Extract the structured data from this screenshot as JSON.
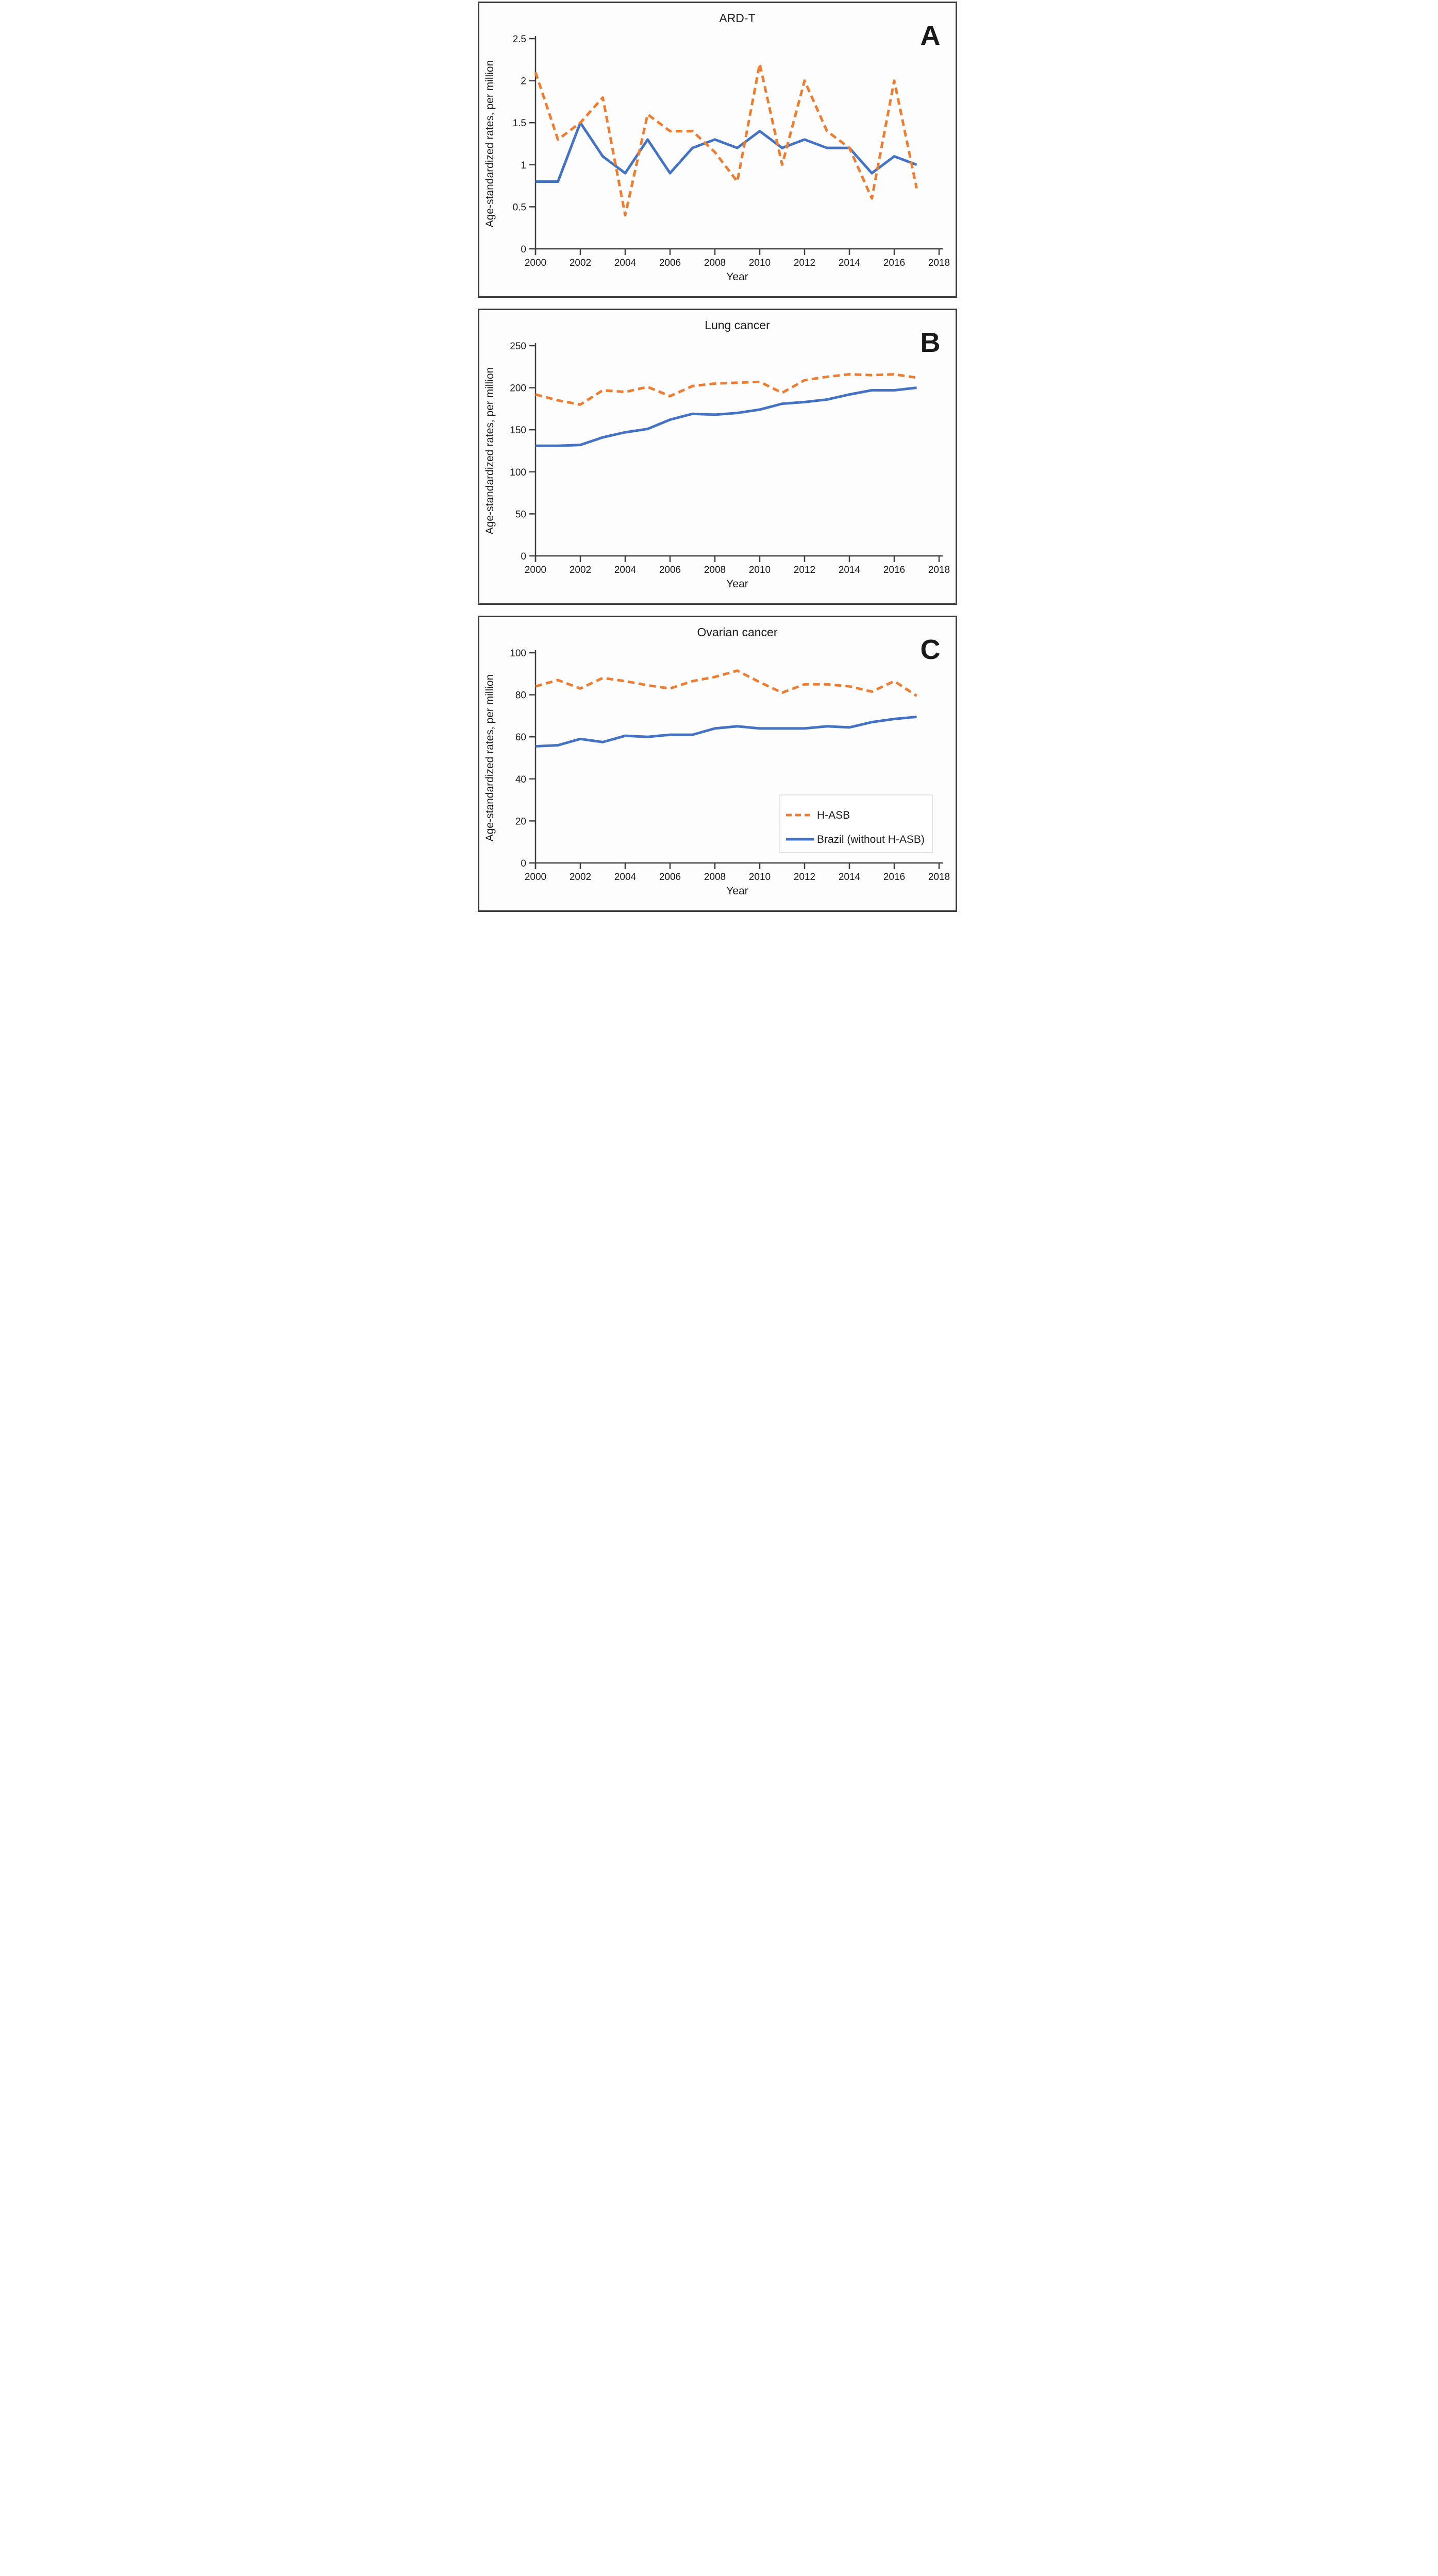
{
  "figure": {
    "y_axis_label": "Age-standardized rates, per million",
    "x_axis_label": "Year",
    "colors": {
      "h_asb_orange": "#ED7D31",
      "brazil_blue": "#4472C4",
      "axis": "#3F3F3F",
      "frame": "#3B3B3B",
      "panel_bg": "#FDFDFD",
      "text": "#1A1A1A",
      "legend_border": "#C9C9C9"
    },
    "legend": {
      "position": "bottom-right-of-panel-C",
      "items": [
        {
          "label": "H-ASB",
          "style": "dashed",
          "color": "#ED7D31"
        },
        {
          "label": "Brazil (without H-ASB)",
          "style": "solid",
          "color": "#4472C4"
        }
      ]
    }
  },
  "chart_data": [
    {
      "type": "line",
      "panel_letter": "A",
      "title": "ARD-T",
      "xlabel": "Year",
      "ylabel": "Age-standardized rates, per million",
      "xlim": [
        2000,
        2018
      ],
      "ylim": [
        0,
        2.5
      ],
      "xticks": [
        2000,
        2002,
        2004,
        2006,
        2008,
        2010,
        2012,
        2014,
        2016,
        2018
      ],
      "yticks": [
        0,
        0.5,
        1,
        1.5,
        2,
        2.5
      ],
      "grid": false,
      "legend": false,
      "x": [
        2000,
        2001,
        2002,
        2003,
        2004,
        2005,
        2006,
        2007,
        2008,
        2009,
        2010,
        2011,
        2012,
        2013,
        2014,
        2015,
        2016,
        2017
      ],
      "series": [
        {
          "name": "H-ASB",
          "color": "#ED7D31",
          "dash": true,
          "values": [
            2.1,
            1.3,
            1.5,
            1.8,
            0.4,
            1.6,
            1.4,
            1.4,
            1.15,
            0.8,
            2.2,
            1.0,
            2.0,
            1.4,
            1.2,
            0.6,
            2.0,
            0.72
          ]
        },
        {
          "name": "Brazil (without H-ASB)",
          "color": "#4472C4",
          "dash": false,
          "values": [
            0.8,
            0.8,
            1.5,
            1.1,
            0.9,
            1.3,
            0.9,
            1.2,
            1.3,
            1.2,
            1.4,
            1.2,
            1.3,
            1.2,
            1.2,
            0.9,
            1.1,
            1.0
          ]
        }
      ]
    },
    {
      "type": "line",
      "panel_letter": "B",
      "title": "Lung cancer",
      "xlabel": "Year",
      "ylabel": "Age-standardized rates, per million",
      "xlim": [
        2000,
        2018
      ],
      "ylim": [
        0,
        250
      ],
      "xticks": [
        2000,
        2002,
        2004,
        2006,
        2008,
        2010,
        2012,
        2014,
        2016,
        2018
      ],
      "yticks": [
        0,
        50,
        100,
        150,
        200,
        250
      ],
      "grid": false,
      "legend": false,
      "x": [
        2000,
        2001,
        2002,
        2003,
        2004,
        2005,
        2006,
        2007,
        2008,
        2009,
        2010,
        2011,
        2012,
        2013,
        2014,
        2015,
        2016,
        2017
      ],
      "series": [
        {
          "name": "H-ASB",
          "color": "#ED7D31",
          "dash": true,
          "values": [
            192,
            185,
            180,
            197,
            195,
            201,
            190,
            202,
            205,
            206,
            207,
            194,
            209,
            213,
            216,
            215,
            216,
            212
          ]
        },
        {
          "name": "Brazil (without H-ASB)",
          "color": "#4472C4",
          "dash": false,
          "values": [
            131,
            131,
            132,
            141,
            147,
            151,
            162,
            169,
            168,
            170,
            174,
            181,
            183,
            186,
            192,
            197,
            197,
            200
          ]
        }
      ]
    },
    {
      "type": "line",
      "panel_letter": "C",
      "title": "Ovarian cancer",
      "xlabel": "Year",
      "ylabel": "Age-standardized rates, per million",
      "xlim": [
        2000,
        2018
      ],
      "ylim": [
        0,
        100
      ],
      "xticks": [
        2000,
        2002,
        2004,
        2006,
        2008,
        2010,
        2012,
        2014,
        2016,
        2018
      ],
      "yticks": [
        0,
        20,
        40,
        60,
        80,
        100
      ],
      "grid": false,
      "legend": true,
      "x": [
        2000,
        2001,
        2002,
        2003,
        2004,
        2005,
        2006,
        2007,
        2008,
        2009,
        2010,
        2011,
        2012,
        2013,
        2014,
        2015,
        2016,
        2017
      ],
      "series": [
        {
          "name": "H-ASB",
          "color": "#ED7D31",
          "dash": true,
          "values": [
            84,
            87,
            83,
            88,
            86.5,
            84.5,
            83,
            86.5,
            88.5,
            91.5,
            86,
            81,
            85,
            85,
            84,
            81.5,
            86.5,
            79.5
          ]
        },
        {
          "name": "Brazil (without H-ASB)",
          "color": "#4472C4",
          "dash": false,
          "values": [
            55.5,
            56,
            59,
            57.5,
            60.5,
            60,
            61,
            61,
            64,
            65,
            64,
            64,
            64,
            65,
            64.5,
            67,
            68.5,
            69.5
          ]
        }
      ]
    }
  ]
}
